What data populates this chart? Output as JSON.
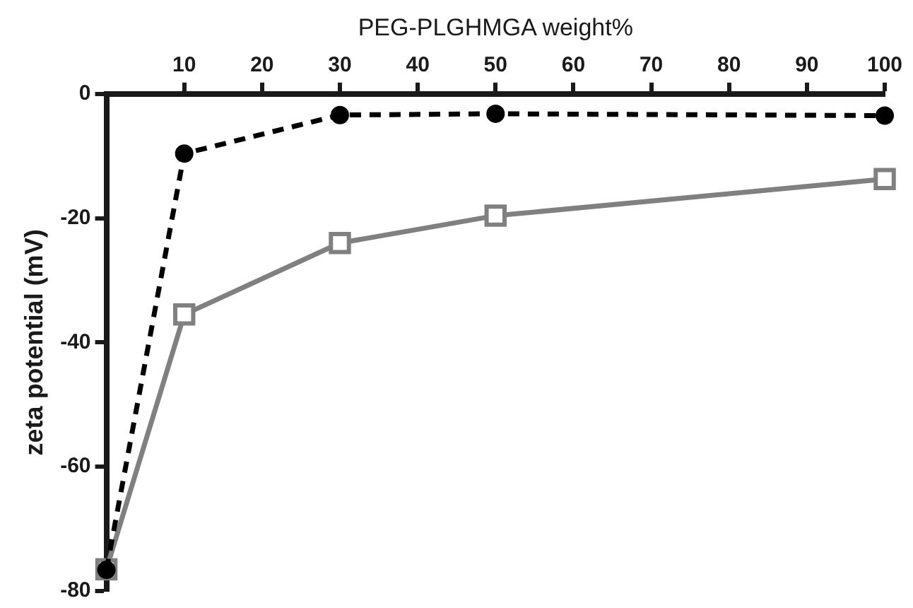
{
  "chart_data": {
    "type": "line",
    "xlabel": "PEG-PLGHMGA weight%",
    "ylabel": "zeta potential (mV)",
    "x": [
      0,
      10,
      30,
      50,
      100
    ],
    "series": [
      {
        "color": "#000000",
        "values": [
          -76.6,
          -9.6,
          -3.4,
          -3.2,
          -3.5
        ],
        "marker": "circle",
        "line_style": "dashed"
      },
      {
        "color": "#808080",
        "values": [
          -76.5,
          -35.5,
          -24,
          -19.6,
          -13.7
        ],
        "marker": "square",
        "line_style": "solid"
      }
    ],
    "xlim": [
      0,
      100
    ],
    "xticks": [
      10,
      20,
      30,
      40,
      50,
      60,
      70,
      80,
      90,
      100
    ],
    "ylim": [
      -80,
      0
    ],
    "yticks": [
      -80,
      -60,
      -40,
      -20,
      0
    ],
    "grid": false,
    "legend": false
  }
}
